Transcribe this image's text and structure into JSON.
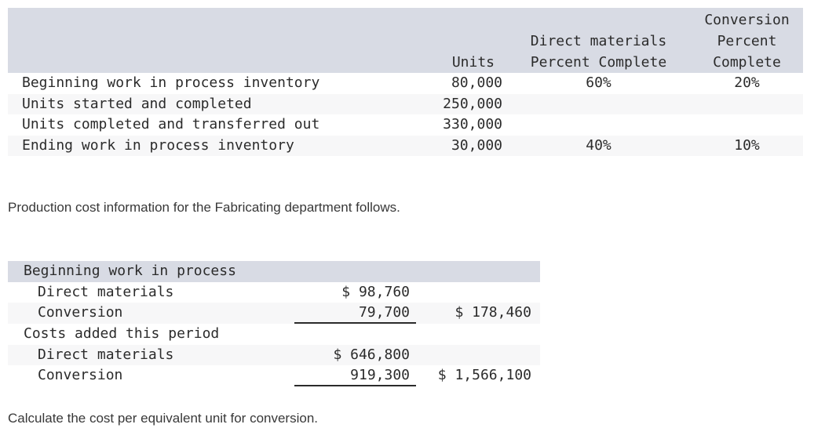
{
  "colors": {
    "table_header_bg": "#d8dbe4",
    "row_stripe_bg": "#f7f7f8",
    "text": "#2b2b2b",
    "underline": "#2b2b2b"
  },
  "units_table": {
    "header": {
      "units": "Units",
      "direct_materials": [
        "Direct materials",
        "Percent Complete"
      ],
      "conversion": [
        "Conversion",
        "Percent",
        "Complete"
      ]
    },
    "rows": [
      {
        "label": "Beginning work in process inventory",
        "units": "80,000",
        "dm_percent": "60%",
        "conv_percent": "20%"
      },
      {
        "label": "Units started and completed",
        "units": "250,000",
        "dm_percent": "",
        "conv_percent": ""
      },
      {
        "label": "Units completed and transferred out",
        "units": "330,000",
        "dm_percent": "",
        "conv_percent": ""
      },
      {
        "label": "Ending work in process inventory",
        "units": "30,000",
        "dm_percent": "40%",
        "conv_percent": "10%"
      }
    ]
  },
  "paragraphs": {
    "production_info": "Production cost information for the Fabricating department follows.",
    "question": "Calculate the cost per equivalent unit for conversion."
  },
  "cost_table": {
    "rows": [
      {
        "label": "Beginning work in process",
        "amount1": "",
        "amount2": ""
      },
      {
        "label": "Direct materials",
        "amount1": "$ 98,760",
        "amount2": ""
      },
      {
        "label": "Conversion",
        "amount1": "79,700",
        "amount2": "$ 178,460"
      },
      {
        "label": "Costs added this period",
        "amount1": "",
        "amount2": ""
      },
      {
        "label": "Direct materials",
        "amount1": "$ 646,800",
        "amount2": ""
      },
      {
        "label": "Conversion",
        "amount1": "919,300",
        "amount2": "$ 1,566,100"
      }
    ]
  }
}
